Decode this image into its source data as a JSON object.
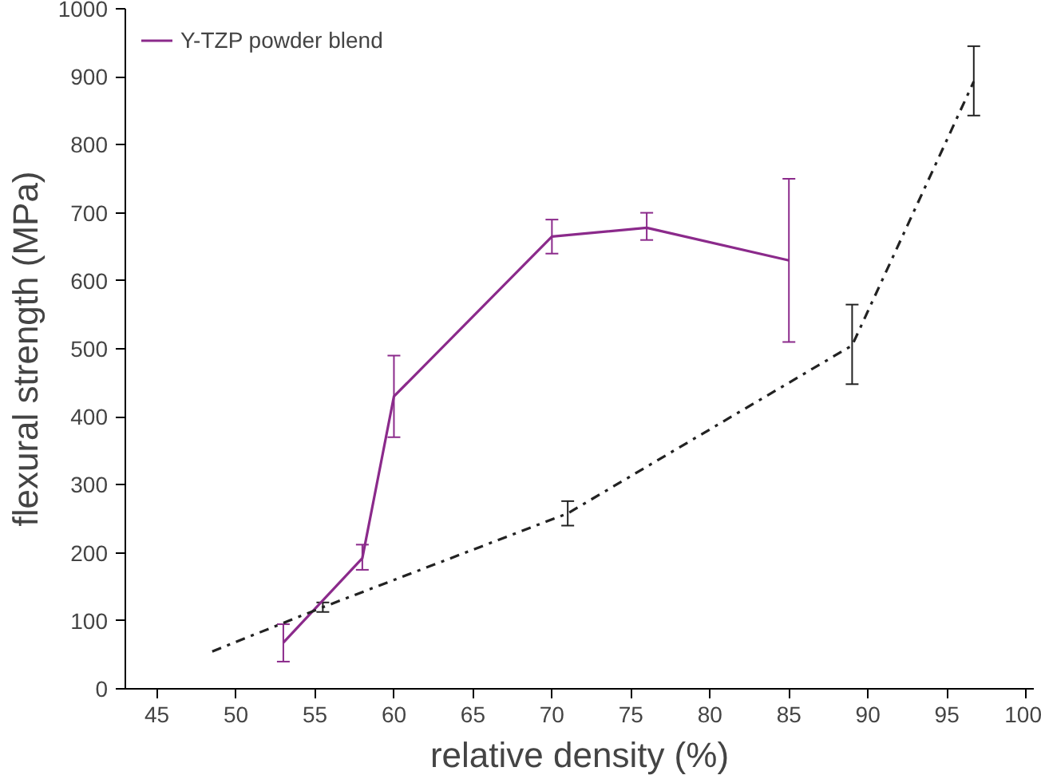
{
  "chart_data": {
    "type": "line",
    "xlabel": "relative density (%)",
    "ylabel": "flexural strength (MPa)",
    "xlim": [
      43,
      100.5
    ],
    "xticks": [
      45,
      50,
      55,
      60,
      65,
      70,
      75,
      80,
      85,
      90,
      95,
      100
    ],
    "ylim": [
      0,
      1000
    ],
    "yticks": [
      0,
      100,
      200,
      300,
      400,
      500,
      600,
      700,
      800,
      900,
      1000
    ],
    "grid": false,
    "legend": "top left",
    "marker": "none",
    "series": [
      {
        "name": "Y-TZP powder blend",
        "color": "#8b2a8b",
        "line_style": "solid",
        "x": [
          53,
          58,
          60,
          70,
          76,
          85
        ],
        "values": [
          68,
          192,
          430,
          665,
          678,
          630
        ],
        "errors": [
          [
            40,
            95
          ],
          [
            175,
            212
          ],
          [
            370,
            490
          ],
          [
            640,
            690
          ],
          [
            660,
            700
          ],
          [
            510,
            750
          ]
        ]
      },
      {
        "color": "#222222",
        "line_style": "dashdot",
        "x": [
          48.5,
          55.5,
          71,
          89,
          96.7
        ],
        "values": [
          55,
          120,
          258,
          505,
          893
        ],
        "errors": [
          null,
          [
            113,
            127
          ],
          [
            240,
            276
          ],
          [
            448,
            565
          ],
          [
            843,
            945
          ]
        ]
      }
    ]
  }
}
